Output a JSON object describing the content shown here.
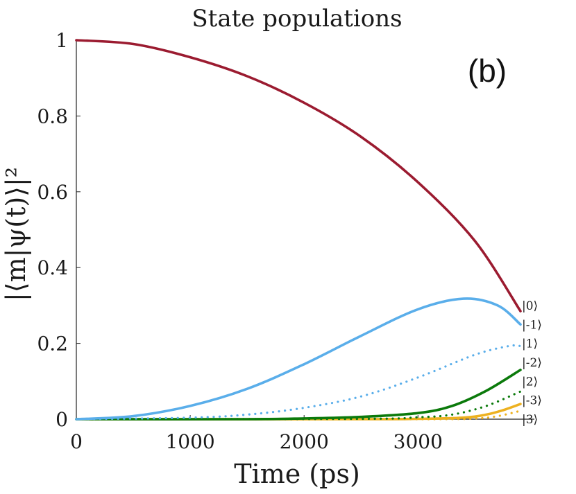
{
  "chart_data": {
    "type": "line",
    "title": "State populations",
    "xlabel": "Time (ps)",
    "ylabel": "|⟨m|ψ(t)⟩|²",
    "panel_label": "(b)",
    "xlim": [
      0,
      3900
    ],
    "ylim": [
      0,
      1
    ],
    "xticks": [
      0,
      1000,
      2000,
      3000
    ],
    "xtick_labels": [
      "0",
      "1000",
      "2000",
      "3000"
    ],
    "yticks": [
      0,
      0.2,
      0.4,
      0.6,
      0.8,
      1
    ],
    "ytick_labels": [
      "0",
      "0.2",
      "0.4",
      "0.6",
      "0.8",
      "1"
    ],
    "grid": false,
    "series": [
      {
        "name": "|0⟩",
        "color": "#9B1B30",
        "style": "solid",
        "x": [
          0,
          500,
          1000,
          1500,
          2000,
          2500,
          3000,
          3500,
          3900
        ],
        "y": [
          1.0,
          0.99,
          0.955,
          0.905,
          0.835,
          0.745,
          0.625,
          0.47,
          0.285
        ]
      },
      {
        "name": "|-1⟩",
        "color": "#5AAEEA",
        "style": "solid",
        "x": [
          0,
          500,
          1000,
          1500,
          2000,
          2500,
          3000,
          3400,
          3700,
          3900
        ],
        "y": [
          0,
          0.008,
          0.035,
          0.08,
          0.145,
          0.22,
          0.29,
          0.318,
          0.3,
          0.25
        ]
      },
      {
        "name": "|1⟩",
        "color": "#5AAEEA",
        "style": "dotted",
        "x": [
          0,
          1000,
          1500,
          2000,
          2500,
          3000,
          3500,
          3800,
          3900
        ],
        "y": [
          0,
          0.004,
          0.012,
          0.03,
          0.06,
          0.11,
          0.17,
          0.193,
          0.193
        ]
      },
      {
        "name": "|-2⟩",
        "color": "#0B7A0B",
        "style": "solid",
        "x": [
          0,
          1500,
          2000,
          2500,
          3000,
          3300,
          3600,
          3900
        ],
        "y": [
          0,
          0.0,
          0.002,
          0.006,
          0.016,
          0.035,
          0.075,
          0.13
        ]
      },
      {
        "name": "|2⟩",
        "color": "#0B7A0B",
        "style": "dotted",
        "x": [
          0,
          2500,
          3000,
          3300,
          3600,
          3900
        ],
        "y": [
          0,
          0.001,
          0.005,
          0.012,
          0.035,
          0.073
        ]
      },
      {
        "name": "|-3⟩",
        "color": "#EDB120",
        "style": "solid",
        "x": [
          0,
          2500,
          3000,
          3400,
          3600,
          3750,
          3900
        ],
        "y": [
          0,
          0.0,
          0.001,
          0.004,
          0.012,
          0.024,
          0.04
        ]
      },
      {
        "name": "|3⟩",
        "color": "#EDB120",
        "style": "dotted",
        "x": [
          0,
          3000,
          3500,
          3700,
          3900
        ],
        "y": [
          0,
          0.0,
          0.002,
          0.008,
          0.022
        ]
      }
    ],
    "legend_entries": [
      {
        "label": "|0⟩",
        "y": 0.3
      },
      {
        "label": "|-1⟩",
        "y": 0.25
      },
      {
        "label": "|1⟩",
        "y": 0.2
      },
      {
        "label": "|-2⟩",
        "y": 0.15
      },
      {
        "label": "|2⟩",
        "y": 0.1
      },
      {
        "label": "|-3⟩",
        "y": 0.05
      },
      {
        "label": "|3⟩",
        "y": 0.0
      }
    ],
    "legend_placement": "right-end-of-lines"
  }
}
